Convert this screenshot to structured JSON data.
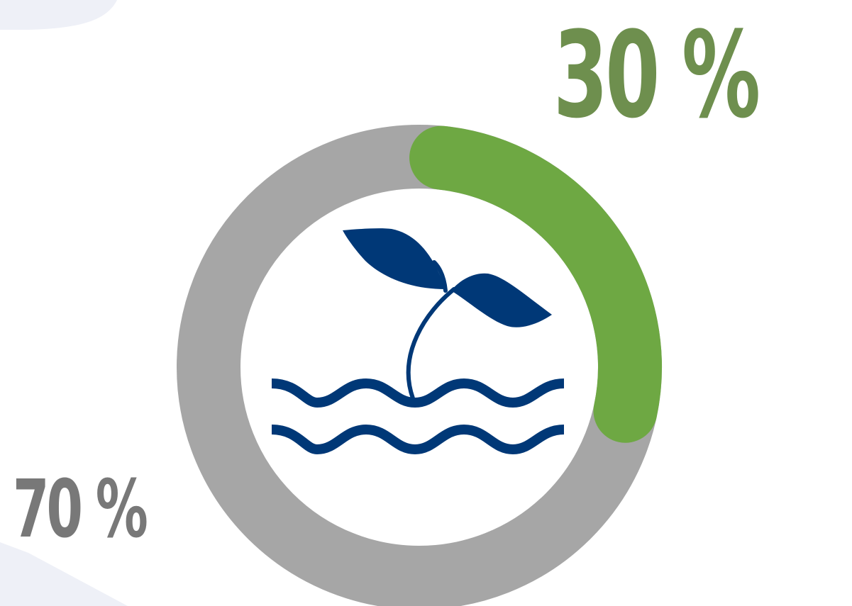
{
  "chart_data": {
    "type": "pie",
    "variant": "donut",
    "slices": [
      {
        "label": "30 %",
        "value": 30,
        "color": "#6ea843"
      },
      {
        "label": "70 %",
        "value": 70,
        "color": "#a6a6a6"
      }
    ],
    "center_icon": "sprout-over-water-icon",
    "label_colors": {
      "highlight": "#6e8f4e",
      "rest": "#787878"
    }
  },
  "colors": {
    "icon": "#003877",
    "background_shape": "#eef0f7"
  }
}
